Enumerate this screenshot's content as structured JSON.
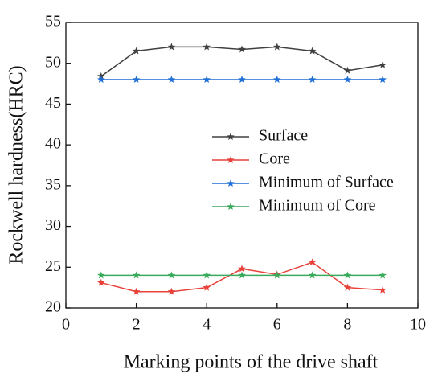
{
  "chart_data": {
    "type": "line",
    "x_label": "Marking points of the drive shaft",
    "y_label": "Rockwell hardness(HRC)",
    "x": [
      1,
      2,
      3,
      4,
      5,
      6,
      7,
      8,
      9
    ],
    "series": [
      {
        "name": "Surface",
        "color": "#404040",
        "values": [
          48.4,
          51.5,
          52,
          52,
          51.7,
          52,
          51.5,
          49.1,
          49.8
        ]
      },
      {
        "name": "Core",
        "color": "#e8413a",
        "values": [
          23.1,
          22,
          22,
          22.5,
          24.8,
          24.1,
          25.6,
          22.5,
          22.2
        ]
      },
      {
        "name": "Minimum of Surface",
        "color": "#1f6fd6",
        "values": [
          48,
          48,
          48,
          48,
          48,
          48,
          48,
          48,
          48
        ]
      },
      {
        "name": "Minimum of Core",
        "color": "#3aaa5c",
        "values": [
          24,
          24,
          24,
          24,
          24,
          24,
          24,
          24,
          24
        ]
      }
    ],
    "xlim": [
      0,
      10
    ],
    "xticks": [
      0,
      2,
      4,
      6,
      8,
      10
    ],
    "ylim": [
      20,
      55
    ],
    "yticks": [
      20,
      25,
      30,
      35,
      40,
      45,
      50,
      55
    ],
    "legend": "right"
  }
}
